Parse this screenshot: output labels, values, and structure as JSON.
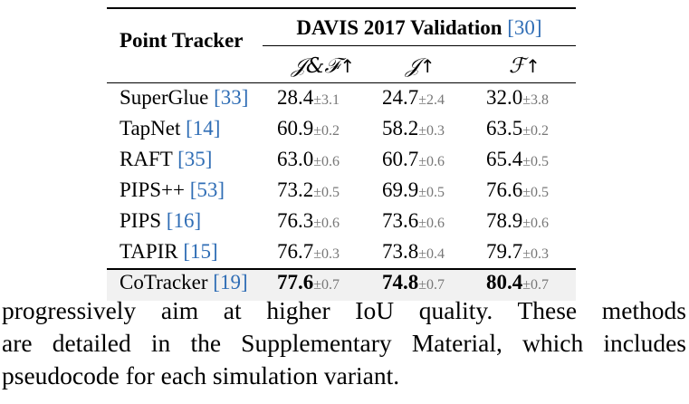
{
  "table": {
    "header": {
      "tracker_label": "Point Tracker",
      "dataset_label": "DAVIS 2017 Validation",
      "dataset_cite": "[30]",
      "metrics": [
        {
          "symbol": "𝒥&ℱ",
          "arrow": "↑"
        },
        {
          "symbol": "𝒥",
          "arrow": "↑"
        },
        {
          "symbol": "ℱ",
          "arrow": "↑"
        }
      ]
    },
    "rows": [
      {
        "name": "SuperGlue",
        "cite": "[33]",
        "jf": "28.4",
        "jf_std": "±3.1",
        "j": "24.7",
        "j_std": "±2.4",
        "f": "32.0",
        "f_std": "±3.8",
        "best": false
      },
      {
        "name": "TapNet",
        "cite": "[14]",
        "jf": "60.9",
        "jf_std": "±0.2",
        "j": "58.2",
        "j_std": "±0.3",
        "f": "63.5",
        "f_std": "±0.2",
        "best": false
      },
      {
        "name": "RAFT",
        "cite": "[35]",
        "jf": "63.0",
        "jf_std": "±0.6",
        "j": "60.7",
        "j_std": "±0.6",
        "f": "65.4",
        "f_std": "±0.5",
        "best": false
      },
      {
        "name": "PIPS++",
        "cite": "[53]",
        "jf": "73.2",
        "jf_std": "±0.5",
        "j": "69.9",
        "j_std": "±0.5",
        "f": "76.6",
        "f_std": "±0.5",
        "best": false
      },
      {
        "name": "PIPS",
        "cite": "[16]",
        "jf": "76.3",
        "jf_std": "±0.6",
        "j": "73.6",
        "j_std": "±0.6",
        "f": "78.9",
        "f_std": "±0.6",
        "best": false
      },
      {
        "name": "TAPIR",
        "cite": "[15]",
        "jf": "76.7",
        "jf_std": "±0.3",
        "j": "73.8",
        "j_std": "±0.4",
        "f": "79.7",
        "f_std": "±0.3",
        "best": false
      },
      {
        "name": "CoTracker",
        "cite": "[19]",
        "jf": "77.6",
        "jf_std": "±0.7",
        "j": "74.8",
        "j_std": "±0.7",
        "f": "80.4",
        "f_std": "±0.7",
        "best": true
      }
    ]
  },
  "paragraph": {
    "lines": [
      "progressively aim at higher IoU quality.  These methods",
      "are detailed in the Supplementary Material, which includes",
      "pseudocode for each simulation variant."
    ]
  }
}
